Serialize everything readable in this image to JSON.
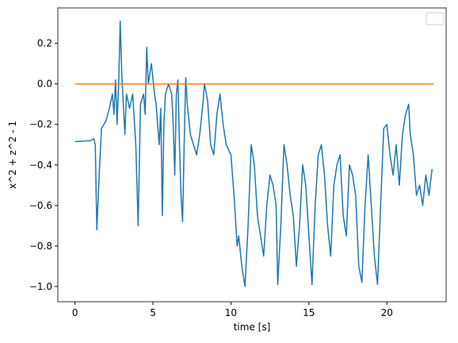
{
  "chart_data": {
    "type": "line",
    "xlabel": "time [s]",
    "ylabel": "x^2 + z^2 - 1",
    "xlim": [
      -1.1,
      23.8
    ],
    "ylim": [
      -1.075,
      0.375
    ],
    "xticks": [
      0,
      5,
      10,
      15,
      20
    ],
    "yticks": [
      {
        "value": -1.0,
        "label": "−1.0"
      },
      {
        "value": -0.8,
        "label": "−0.8"
      },
      {
        "value": -0.6,
        "label": "−0.6"
      },
      {
        "value": -0.4,
        "label": "−0.4"
      },
      {
        "value": -0.2,
        "label": "−0.2"
      },
      {
        "value": 0.0,
        "label": "0.0"
      },
      {
        "value": 0.2,
        "label": "0.2"
      }
    ],
    "series": [
      {
        "color": "#1f77b4",
        "x": [
          0,
          1.0,
          1.2,
          1.3,
          1.4,
          1.55,
          1.7,
          2.0,
          2.2,
          2.4,
          2.5,
          2.6,
          2.7,
          2.8,
          2.9,
          3.0,
          3.1,
          3.2,
          3.3,
          3.5,
          3.7,
          3.9,
          4.05,
          4.2,
          4.4,
          4.5,
          4.6,
          4.7,
          4.9,
          5.1,
          5.2,
          5.4,
          5.5,
          5.6,
          5.7,
          5.8,
          6.0,
          6.2,
          6.3,
          6.4,
          6.5,
          6.6,
          6.7,
          6.8,
          6.9,
          7.0,
          7.1,
          7.2,
          7.4,
          7.6,
          7.8,
          8.0,
          8.2,
          8.3,
          8.5,
          8.7,
          8.9,
          9.1,
          9.3,
          9.5,
          9.7,
          10.0,
          10.2,
          10.4,
          10.5,
          10.7,
          10.9,
          11.1,
          11.3,
          11.5,
          11.7,
          11.9,
          12.1,
          12.3,
          12.5,
          12.7,
          12.9,
          13.0,
          13.2,
          13.4,
          13.6,
          13.8,
          14.0,
          14.2,
          14.4,
          14.6,
          14.8,
          15.0,
          15.2,
          15.4,
          15.6,
          15.8,
          16.0,
          16.2,
          16.4,
          16.6,
          16.8,
          17.0,
          17.2,
          17.4,
          17.6,
          17.8,
          18.0,
          18.2,
          18.4,
          18.6,
          18.8,
          19.0,
          19.2,
          19.4,
          19.6,
          19.8,
          20.0,
          20.2,
          20.4,
          20.6,
          20.8,
          21.0,
          21.2,
          21.4,
          21.5,
          21.7,
          21.9,
          22.1,
          22.3,
          22.5,
          22.7,
          22.9
        ],
        "values": [
          -0.285,
          -0.28,
          -0.27,
          -0.3,
          -0.72,
          -0.45,
          -0.22,
          -0.18,
          -0.12,
          -0.05,
          -0.15,
          0.02,
          -0.2,
          0.0,
          0.31,
          0.05,
          -0.1,
          -0.25,
          -0.05,
          -0.12,
          -0.05,
          -0.3,
          -0.7,
          -0.1,
          -0.05,
          -0.15,
          0.18,
          0.0,
          0.1,
          -0.05,
          -0.1,
          -0.3,
          -0.12,
          -0.65,
          -0.2,
          -0.05,
          0.0,
          -0.05,
          -0.2,
          -0.45,
          -0.05,
          0.02,
          -0.3,
          -0.55,
          -0.68,
          -0.3,
          0.03,
          -0.1,
          -0.25,
          -0.3,
          -0.35,
          -0.25,
          -0.1,
          0.0,
          -0.08,
          -0.3,
          -0.35,
          -0.15,
          -0.05,
          -0.2,
          -0.3,
          -0.35,
          -0.55,
          -0.8,
          -0.75,
          -0.9,
          -1.0,
          -0.7,
          -0.3,
          -0.4,
          -0.65,
          -0.75,
          -0.85,
          -0.6,
          -0.45,
          -0.5,
          -0.6,
          -0.99,
          -0.7,
          -0.3,
          -0.4,
          -0.55,
          -0.65,
          -0.9,
          -0.7,
          -0.4,
          -0.5,
          -0.75,
          -0.99,
          -0.6,
          -0.35,
          -0.3,
          -0.45,
          -0.7,
          -0.85,
          -0.5,
          -0.4,
          -0.35,
          -0.65,
          -0.75,
          -0.4,
          -0.45,
          -0.55,
          -0.9,
          -0.98,
          -0.6,
          -0.35,
          -0.6,
          -0.85,
          -0.99,
          -0.6,
          -0.22,
          -0.2,
          -0.35,
          -0.45,
          -0.3,
          -0.5,
          -0.25,
          -0.15,
          -0.1,
          -0.25,
          -0.35,
          -0.55,
          -0.5,
          -0.6,
          -0.45,
          -0.55,
          -0.42
        ]
      },
      {
        "color": "#ff7f0e",
        "x": [
          0,
          23
        ],
        "values": [
          0,
          0
        ]
      }
    ]
  }
}
